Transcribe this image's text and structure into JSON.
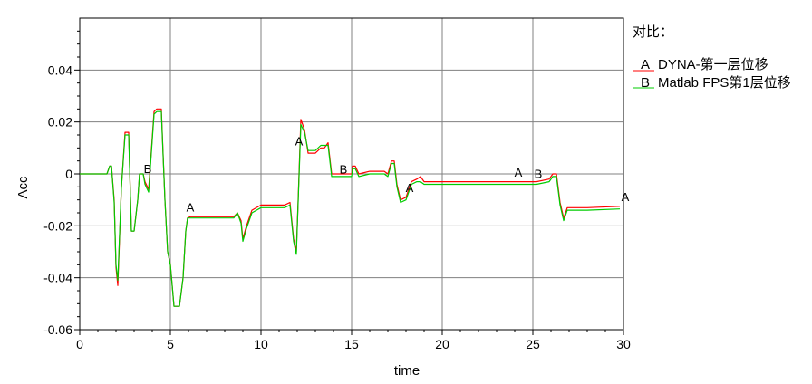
{
  "chart_data": {
    "type": "line",
    "xlabel": "time",
    "ylabel": "Acc",
    "xlim": [
      0,
      30
    ],
    "ylim": [
      -0.06,
      0.06
    ],
    "x_ticks": [
      0,
      5,
      10,
      15,
      20,
      25,
      30
    ],
    "x_tick_labels": [
      "0",
      "5",
      "10",
      "15",
      "20",
      "25",
      "30"
    ],
    "y_ticks": [
      -0.06,
      -0.04,
      -0.02,
      0,
      0.02,
      0.04
    ],
    "y_tick_labels": [
      "-0.06",
      "-0.04",
      "-0.02",
      "0",
      "0.02",
      "0.04"
    ],
    "grid": true,
    "legend_title": "对比：",
    "legend_position": "right",
    "series": [
      {
        "marker": "A",
        "name": "DYNA-第一层位移",
        "color": "#ff0000",
        "x": [
          0,
          1.5,
          1.65,
          1.75,
          1.9,
          2,
          2.1,
          2.3,
          2.5,
          2.7,
          2.85,
          3.0,
          3.2,
          3.3,
          3.5,
          3.6,
          3.8,
          3.9,
          4.1,
          4.25,
          4.5,
          4.7,
          4.85,
          5,
          5.2,
          5.5,
          5.7,
          5.85,
          5.95,
          6.1,
          6.5,
          7,
          8.5,
          8.7,
          8.9,
          9.0,
          9.2,
          9.5,
          10,
          11,
          11.3,
          11.6,
          11.8,
          11.95,
          12.05,
          12.2,
          12.4,
          12.6,
          13,
          13.3,
          13.5,
          13.7,
          13.9,
          15,
          15.05,
          15.2,
          15.4,
          16,
          16.8,
          17,
          17.2,
          17.35,
          17.5,
          17.7,
          18,
          18.3,
          18.6,
          18.8,
          19,
          20,
          22,
          24,
          25.2,
          25.9,
          26.1,
          26.3,
          26.5,
          26.7,
          26.9,
          27.2,
          28,
          29.8
        ],
        "values": [
          0,
          0,
          0.003,
          0.003,
          -0.01,
          -0.036,
          -0.043,
          -0.005,
          0.016,
          0.016,
          -0.022,
          -0.022,
          -0.01,
          0,
          0,
          -0.003,
          -0.006,
          0.004,
          0.024,
          0.025,
          0.025,
          -0.01,
          -0.03,
          -0.035,
          -0.051,
          -0.051,
          -0.04,
          -0.022,
          -0.017,
          -0.0165,
          -0.0165,
          -0.0165,
          -0.0165,
          -0.015,
          -0.018,
          -0.025,
          -0.02,
          -0.014,
          -0.012,
          -0.012,
          -0.012,
          -0.011,
          -0.025,
          -0.03,
          -0.01,
          0.021,
          0.017,
          0.008,
          0.008,
          0.01,
          0.01,
          0.012,
          0,
          0,
          0.003,
          0.003,
          0,
          0.001,
          0.001,
          0,
          0.005,
          0.005,
          -0.004,
          -0.01,
          -0.009,
          -0.003,
          -0.002,
          -0.001,
          -0.003,
          -0.003,
          -0.003,
          -0.003,
          -0.003,
          -0.002,
          0,
          0,
          -0.011,
          -0.017,
          -0.013,
          -0.013,
          -0.013,
          -0.0125
        ],
        "point_labels": [
          {
            "text": "A",
            "x": 6.1,
            "y": -0.0145
          },
          {
            "text": "A",
            "x": 12.1,
            "y": 0.011
          },
          {
            "text": "A",
            "x": 18.2,
            "y": -0.007
          },
          {
            "text": "A",
            "x": 24.2,
            "y": -0.001
          },
          {
            "text": "A",
            "x": 30.1,
            "y": -0.0105
          }
        ]
      },
      {
        "marker": "B",
        "name": "Matlab FPS第1层位移",
        "color": "#00cc00",
        "x": [
          0,
          1.5,
          1.65,
          1.75,
          1.9,
          2,
          2.1,
          2.3,
          2.5,
          2.7,
          2.85,
          3.0,
          3.2,
          3.3,
          3.5,
          3.6,
          3.8,
          3.9,
          4.1,
          4.25,
          4.5,
          4.7,
          4.85,
          5,
          5.2,
          5.5,
          5.7,
          5.85,
          5.95,
          6.1,
          6.5,
          7,
          8.5,
          8.7,
          8.9,
          9.0,
          9.2,
          9.5,
          10,
          11,
          11.3,
          11.6,
          11.8,
          11.95,
          12.05,
          12.2,
          12.4,
          12.6,
          13,
          13.3,
          13.5,
          13.7,
          13.9,
          15,
          15.05,
          15.2,
          15.4,
          16,
          16.8,
          17,
          17.2,
          17.35,
          17.5,
          17.7,
          18,
          18.3,
          18.6,
          18.8,
          19,
          20,
          22,
          24,
          25.2,
          25.9,
          26.1,
          26.3,
          26.5,
          26.7,
          26.9,
          27.2,
          28,
          29.8
        ],
        "values": [
          0,
          0,
          0.003,
          0.003,
          -0.011,
          -0.035,
          -0.041,
          -0.005,
          0.015,
          0.015,
          -0.022,
          -0.022,
          -0.01,
          0,
          0,
          -0.004,
          -0.007,
          0.003,
          0.023,
          0.024,
          0.024,
          -0.01,
          -0.03,
          -0.035,
          -0.051,
          -0.051,
          -0.04,
          -0.022,
          -0.017,
          -0.017,
          -0.017,
          -0.017,
          -0.017,
          -0.015,
          -0.019,
          -0.026,
          -0.021,
          -0.015,
          -0.013,
          -0.013,
          -0.013,
          -0.012,
          -0.026,
          -0.031,
          -0.011,
          0.019,
          0.016,
          0.009,
          0.009,
          0.011,
          0.011,
          0.011,
          -0.001,
          -0.001,
          0.002,
          0.002,
          -0.001,
          0,
          0,
          -0.001,
          0.004,
          0.004,
          -0.005,
          -0.011,
          -0.01,
          -0.004,
          -0.003,
          -0.003,
          -0.004,
          -0.004,
          -0.004,
          -0.004,
          -0.004,
          -0.003,
          -0.001,
          -0.001,
          -0.012,
          -0.018,
          -0.014,
          -0.014,
          -0.014,
          -0.0135
        ],
        "point_labels": [
          {
            "text": "B",
            "x": 3.75,
            "y": 0.0003
          },
          {
            "text": "B",
            "x": 14.55,
            "y": 0.0002
          },
          {
            "text": "B",
            "x": 25.3,
            "y": -0.0015
          }
        ]
      }
    ]
  }
}
